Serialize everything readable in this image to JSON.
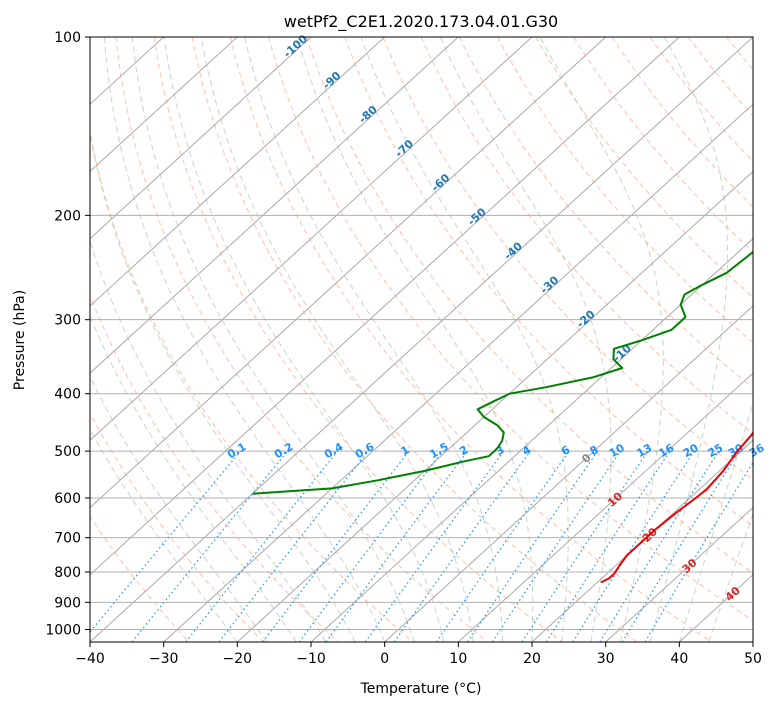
{
  "chart_data": {
    "type": "line",
    "diagram": "skew-T log-P",
    "title": "wetPf2_C2E1.2020.173.04.01.G30",
    "xlabel": "Temperature (°C)",
    "ylabel": "Pressure (hPa)",
    "xlim": [
      -40,
      50
    ],
    "ylim": [
      1050,
      100
    ],
    "y_scale": "log",
    "grid": true,
    "x_ticks": [
      -40,
      -30,
      -20,
      -10,
      0,
      10,
      20,
      30,
      40,
      50
    ],
    "y_ticks": [
      100,
      200,
      300,
      400,
      500,
      600,
      700,
      800,
      900,
      1000
    ],
    "colors": {
      "temperature": "#ee0000",
      "dewpoint": "#008000",
      "isotherm_label": "#1f77b4",
      "mixing_ratio": "#1e90ff",
      "moist_adiabat_label": "#d62728",
      "dry_adiabat": "#ffa07a",
      "moist_adiabat": "#8fbc8f",
      "skewed_isotherm": "#aaaaaa"
    },
    "isotherm_labels": [
      "-100",
      "-90",
      "-80",
      "-70",
      "-60",
      "-50",
      "-40",
      "-30",
      "-20",
      "-10"
    ],
    "mixing_ratio_labels": [
      "0.1",
      "0.2",
      "0.4",
      "0.6",
      "1",
      "1.5",
      "2",
      "3",
      "4",
      "6",
      "8",
      "10",
      "13",
      "16",
      "20",
      "25",
      "30",
      "36"
    ],
    "moist_adiabat_labels": [
      "0",
      "10",
      "20",
      "30",
      "40"
    ],
    "series": [
      {
        "key": "temperature",
        "points": [
          {
            "p": 100,
            "t": 8.7
          },
          {
            "p": 103,
            "t": 6.5
          },
          {
            "p": 107,
            "t": 4.0
          },
          {
            "p": 112,
            "t": 2.0
          },
          {
            "p": 118,
            "t": 1.0
          },
          {
            "p": 125,
            "t": 1.5
          },
          {
            "p": 132,
            "t": 2.5
          },
          {
            "p": 140,
            "t": 2.0
          },
          {
            "p": 148,
            "t": -0.5
          },
          {
            "p": 157,
            "t": -1.5
          },
          {
            "p": 167,
            "t": -1.0
          },
          {
            "p": 180,
            "t": 0.5
          },
          {
            "p": 195,
            "t": 2.0
          },
          {
            "p": 210,
            "t": 3.5
          },
          {
            "p": 230,
            "t": 5.0
          },
          {
            "p": 250,
            "t": 6.8
          },
          {
            "p": 275,
            "t": 8.5
          },
          {
            "p": 295,
            "t": 9.5
          },
          {
            "p": 310,
            "t": 10.5
          },
          {
            "p": 330,
            "t": 12.0
          },
          {
            "p": 350,
            "t": 13.8
          },
          {
            "p": 380,
            "t": 15.3
          },
          {
            "p": 410,
            "t": 16.7
          },
          {
            "p": 440,
            "t": 18.0
          },
          {
            "p": 470,
            "t": 19.0
          },
          {
            "p": 500,
            "t": 19.5
          },
          {
            "p": 540,
            "t": 20.5
          },
          {
            "p": 580,
            "t": 21.0
          },
          {
            "p": 600,
            "t": 20.8
          },
          {
            "p": 640,
            "t": 20.3
          },
          {
            "p": 680,
            "t": 20.0
          },
          {
            "p": 720,
            "t": 20.0
          },
          {
            "p": 750,
            "t": 20.0
          },
          {
            "p": 780,
            "t": 20.5
          },
          {
            "p": 805,
            "t": 21.0
          },
          {
            "p": 820,
            "t": 21.0
          },
          {
            "p": 833,
            "t": 20.5
          }
        ]
      },
      {
        "key": "dewpoint",
        "points": [
          {
            "p": 100,
            "t": 0.0
          },
          {
            "p": 112,
            "t": -0.5
          },
          {
            "p": 122,
            "t": -1.0
          },
          {
            "p": 130,
            "t": -2.0
          },
          {
            "p": 140,
            "t": -4.0
          },
          {
            "p": 150,
            "t": -6.0
          },
          {
            "p": 160,
            "t": -8.0
          },
          {
            "p": 170,
            "t": -8.5
          },
          {
            "p": 182,
            "t": -8.5
          },
          {
            "p": 197,
            "t": -8.0
          },
          {
            "p": 212,
            "t": -8.0
          },
          {
            "p": 230,
            "t": -8.0
          },
          {
            "p": 250,
            "t": -8.5
          },
          {
            "p": 262,
            "t": -10.0
          },
          {
            "p": 272,
            "t": -11.0
          },
          {
            "p": 283,
            "t": -10.0
          },
          {
            "p": 297,
            "t": -7.5
          },
          {
            "p": 312,
            "t": -7.5
          },
          {
            "p": 325,
            "t": -10.0
          },
          {
            "p": 336,
            "t": -12.5
          },
          {
            "p": 350,
            "t": -11.0
          },
          {
            "p": 362,
            "t": -8.5
          },
          {
            "p": 375,
            "t": -11.0
          },
          {
            "p": 390,
            "t": -16.0
          },
          {
            "p": 400,
            "t": -20.0
          },
          {
            "p": 412,
            "t": -21.0
          },
          {
            "p": 425,
            "t": -22.0
          },
          {
            "p": 438,
            "t": -20.0
          },
          {
            "p": 452,
            "t": -17.0
          },
          {
            "p": 465,
            "t": -15.0
          },
          {
            "p": 480,
            "t": -14.0
          },
          {
            "p": 495,
            "t": -13.5
          },
          {
            "p": 510,
            "t": -13.5
          },
          {
            "p": 520,
            "t": -16.0
          },
          {
            "p": 540,
            "t": -20.0
          },
          {
            "p": 560,
            "t": -25.0
          },
          {
            "p": 578,
            "t": -30.0
          },
          {
            "p": 590,
            "t": -40.0
          }
        ]
      }
    ]
  }
}
